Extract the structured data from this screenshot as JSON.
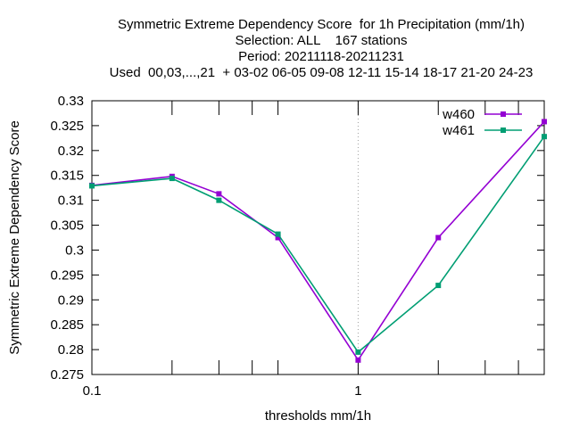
{
  "chart_data": {
    "type": "line",
    "title_lines": [
      "Symmetric Extreme Dependency Score  for 1h Precipitation (mm/1h)",
      "Selection: ALL    167 stations",
      "Period: 20211118-20211231",
      "Used  00,03,...,21  + 03-02 06-05 09-08 12-11 15-14 18-17 21-20 24-23"
    ],
    "xlabel": "thresholds mm/1h",
    "ylabel": "Symmetric Extreme Dependency Score",
    "xscale": "log",
    "xlim": [
      0.1,
      5
    ],
    "ylim": [
      0.275,
      0.33
    ],
    "xticks": [
      {
        "value": 0.1,
        "label": "0.1"
      },
      {
        "value": 1,
        "label": "1"
      }
    ],
    "xminorticks": [
      0.2,
      0.3,
      0.4,
      0.5,
      2,
      3,
      4,
      5
    ],
    "yticks": [
      {
        "value": 0.275,
        "label": "0.275"
      },
      {
        "value": 0.28,
        "label": "0.28"
      },
      {
        "value": 0.285,
        "label": "0.285"
      },
      {
        "value": 0.29,
        "label": "0.29"
      },
      {
        "value": 0.295,
        "label": "0.295"
      },
      {
        "value": 0.3,
        "label": "0.3"
      },
      {
        "value": 0.305,
        "label": "0.305"
      },
      {
        "value": 0.31,
        "label": "0.31"
      },
      {
        "value": 0.315,
        "label": "0.315"
      },
      {
        "value": 0.32,
        "label": "0.32"
      },
      {
        "value": 0.325,
        "label": "0.325"
      },
      {
        "value": 0.33,
        "label": "0.33"
      }
    ],
    "grid": "dotted at x=1",
    "legend_position": "top-right",
    "x": [
      0.1,
      0.2,
      0.3,
      0.5,
      1,
      2,
      5
    ],
    "series": [
      {
        "name": "w460",
        "color": "#9400d3",
        "values": [
          0.313,
          0.3148,
          0.3113,
          0.3025,
          0.2779,
          0.3025,
          0.3258
        ]
      },
      {
        "name": "w461",
        "color": "#009e73",
        "values": [
          0.3129,
          0.3144,
          0.31,
          0.3032,
          0.2795,
          0.2929,
          0.3228
        ]
      }
    ]
  }
}
